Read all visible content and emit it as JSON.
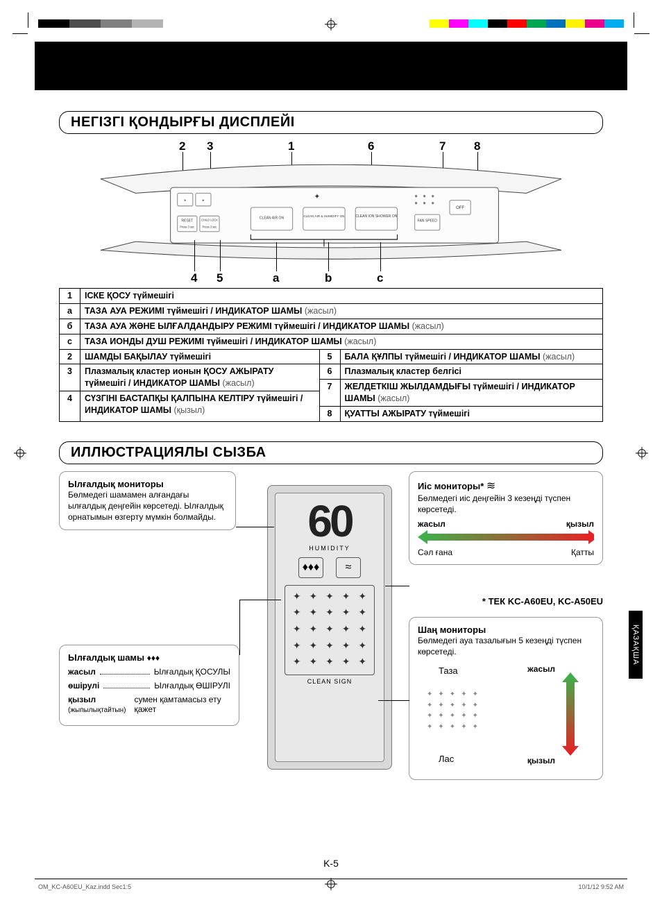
{
  "printer_marks": {
    "bw_bars": [
      "#000000",
      "#4d4d4d",
      "#808080",
      "#b3b3b3"
    ],
    "cmyk_bars": [
      "#ffff00",
      "#ff00ff",
      "#00ffff",
      "#000000",
      "#ff0000",
      "#00a651",
      "#0072bc",
      "#fff200",
      "#ec008c",
      "#00aeef"
    ]
  },
  "section1": {
    "title": "НЕГІЗГІ ҚОНДЫРҒЫ ДИСПЛЕЙІ",
    "top_nums": {
      "n2": "2",
      "n3": "3",
      "n1": "1",
      "n6": "6",
      "n7": "7",
      "n8": "8"
    },
    "bot_nums": {
      "n4": "4",
      "n5": "5",
      "na": "a",
      "nb": "b",
      "nc": "c"
    },
    "panel_buttons": {
      "reset": "RESET",
      "reset_sub": "Press 3 sec",
      "child_lock": "CHILD LOCK",
      "child_lock_sub": "Press 3 sec",
      "clean_air": "CLEAN AIR ON",
      "clean_air_hum": "CLEAN AIR & HUMIDIFY ON",
      "shower": "CLEAN ION SHOWER ON",
      "fan": "FAN SPEED",
      "off": "OFF"
    },
    "table": [
      {
        "k": "1",
        "t": "ІСКЕ ҚОСУ түймешігі"
      },
      {
        "k": "a",
        "t": "ТАЗА АУА РЕЖИМІ түймешігі / ИНДИКАТОР ШАМЫ ",
        "g": "(жасыл)"
      },
      {
        "k": "б",
        "t": "ТАЗА АУА ЖӘНЕ ЫЛҒАЛДАНДЫРУ РЕЖИМІ түймешігі / ИНДИКАТОР ШАМЫ ",
        "g": "(жасыл)"
      },
      {
        "k": "c",
        "t": "ТАЗА ИОНДЫ ДУШ РЕЖИМІ түймешігі / ИНДИКАТОР ШАМЫ ",
        "g": "(жасыл)"
      }
    ],
    "table2": {
      "l2": {
        "k": "2",
        "t": "ШАМДЫ БАҚЫЛАУ түймешігі"
      },
      "l3": {
        "k": "3",
        "t": "Плазмалық кластер ионын ҚОСУ АЖЫРАТУ түймешігі / ИНДИКАТОР ШАМЫ ",
        "g": "(жасыл)"
      },
      "l4": {
        "k": "4",
        "t": "СҮЗГІНІ БАСТАПҚЫ ҚАЛПЫНА КЕЛТІРУ түймешігі / ИНДИКАТОР ШАМЫ ",
        "g": "(қызыл)"
      },
      "r5": {
        "k": "5",
        "t": "БАЛА ҚҰЛПЫ түймешігі / ИНДИКАТОР ШАМЫ ",
        "g": "(жасыл)"
      },
      "r6": {
        "k": "6",
        "t": "Плазмалық кластер белгісі"
      },
      "r7": {
        "k": "7",
        "t": "ЖЕЛДЕТКІШ ЖЫЛДАМДЫҒЫ түймешігі / ИНДИКАТОР ШАМЫ ",
        "g": "(жасыл)"
      },
      "r8": {
        "k": "8",
        "t": "ҚУАТТЫ АЖЫРАТУ түймешігі"
      }
    }
  },
  "section2": {
    "title": "ИЛЛЮСТРАЦИЯЛЫ СЫЗБА",
    "humidity_monitor": {
      "h": "Ылғалдық мониторы",
      "p": "Бөлмедегі шамамен алғандағы ылғалдық деңгейін көрсетеді. Ылғалдық орнатымын өзгерту мүмкін болмайды."
    },
    "display": {
      "value": "60",
      "humidity": "HUMIDITY",
      "clean": "CLEAN SIGN",
      "drops": "♦♦♦",
      "wave": "≈"
    },
    "odor": {
      "h": "Иіс мониторы*",
      "p": "Бөлмедегі иіс деңгейін 3 кезеңді түспен көрсетеді.",
      "left_lbl": "жасыл",
      "right_lbl": "қызыл",
      "left_sub": "Сәл ғана",
      "right_sub": "Қатты",
      "grad_left": "#39b54a",
      "grad_right": "#ed1c24"
    },
    "models": "* ТЕК KC-A60EU, KC-A50EU",
    "humidity_light": {
      "h": "Ылғалдық шамы",
      "rows": [
        {
          "l": "жасыл",
          "r": "Ылғалдық ҚОСУЛЫ"
        },
        {
          "l": "өшірулі",
          "r": "Ылғалдық ӨШІРУЛІ"
        },
        {
          "l": "қызыл",
          "sub": "(жыпылықтайтын)",
          "r": "сумен қамтамасыз ету қажет"
        }
      ]
    },
    "dust": {
      "h": "Шаң мониторы",
      "p": "Бөлмедегі ауа тазалығын 5 кезеңді түспен көрсетеді.",
      "clean": "Таза",
      "dirty": "Лас",
      "green": "жасыл",
      "red": "қызыл",
      "grad_top": "#39b54a",
      "grad_bot": "#ed1c24"
    }
  },
  "side_tab": "ҚАЗАҚША",
  "page_num": "K-5",
  "footer_left": "OM_KC-A60EU_Kaz.indd   Sec1:5",
  "footer_right": "10/1/12   9:52 AM"
}
